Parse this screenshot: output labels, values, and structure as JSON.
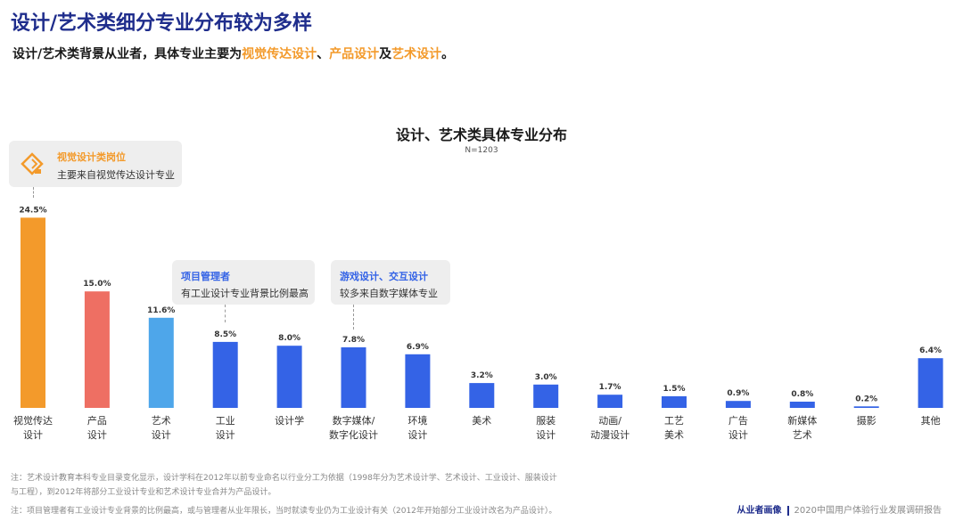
{
  "page": {
    "title": "设计/艺术类细分专业分布较为多样",
    "subtitle_prefix": "设计/艺术类背景从业者，具体专业主要为",
    "subtitle_hl1": "视觉传达设计",
    "subtitle_sep1": "、",
    "subtitle_hl2": "产品设计",
    "subtitle_sep2": "及",
    "subtitle_hl3": "艺术设计",
    "subtitle_end": "。"
  },
  "callouts": {
    "visual": {
      "title": "视觉设计类岗位",
      "body": "主要来自视觉传达设计专业"
    },
    "pm": {
      "title": "项目管理者",
      "body": "有工业设计专业背景比例最高"
    },
    "game": {
      "title": "游戏设计、交互设计",
      "body": "较多来自数字媒体专业"
    }
  },
  "notes": {
    "note1a": "注：艺术设计教育本科专业目录变化显示，设计学科在2012年以前专业命名以行业分工为依据（1998年分为艺术设计学、艺术设计、工业设计、服装设计",
    "note1b": "与工程），到2012年将部分工业设计专业和艺术设计专业合并为产品设计。",
    "note2": "注：项目管理者有工业设计专业背景的比例最高，或与管理者从业年限长，当时就读专业仍为工业设计有关（2012年开始部分工业设计改名为产品设计）。"
  },
  "footer": {
    "brand": "从业者画像",
    "report": "2020中国用户体验行业发展调研报告"
  },
  "colors": {
    "orange": "#f39a2b",
    "red": "#ee6f63",
    "lightblue": "#4ea6ea",
    "blue": "#3463e6",
    "navy": "#1f2d8c"
  },
  "chart_data": {
    "type": "bar",
    "title": "设计、艺术类具体专业分布",
    "subtitle": "N=1203",
    "categories": [
      [
        "视觉传达",
        "设计"
      ],
      [
        "产品",
        "设计"
      ],
      [
        "艺术",
        "设计"
      ],
      [
        "工业",
        "设计"
      ],
      [
        "设计学"
      ],
      [
        "数字媒体/",
        "数字化设计"
      ],
      [
        "环境",
        "设计"
      ],
      [
        "美术"
      ],
      [
        "服装",
        "设计"
      ],
      [
        "动画/",
        "动漫设计"
      ],
      [
        "工艺",
        "美术"
      ],
      [
        "广告",
        "设计"
      ],
      [
        "新媒体",
        "艺术"
      ],
      [
        "摄影"
      ],
      [
        "其他"
      ]
    ],
    "values": [
      24.5,
      15.0,
      11.6,
      8.5,
      8.0,
      7.8,
      6.9,
      3.2,
      3.0,
      1.7,
      1.5,
      0.9,
      0.8,
      0.2,
      6.4
    ],
    "value_labels": [
      "24.5%",
      "15.0%",
      "11.6%",
      "8.5%",
      "8.0%",
      "7.8%",
      "6.9%",
      "3.2%",
      "3.0%",
      "1.7%",
      "1.5%",
      "0.9%",
      "0.8%",
      "0.2%",
      "6.4%"
    ],
    "bar_colors": [
      "#f39a2b",
      "#ee6f63",
      "#4ea6ea",
      "#3463e6",
      "#3463e6",
      "#3463e6",
      "#3463e6",
      "#3463e6",
      "#3463e6",
      "#3463e6",
      "#3463e6",
      "#3463e6",
      "#3463e6",
      "#3463e6",
      "#3463e6"
    ],
    "ylim": [
      0,
      25
    ],
    "grid": false,
    "legend": "none"
  }
}
